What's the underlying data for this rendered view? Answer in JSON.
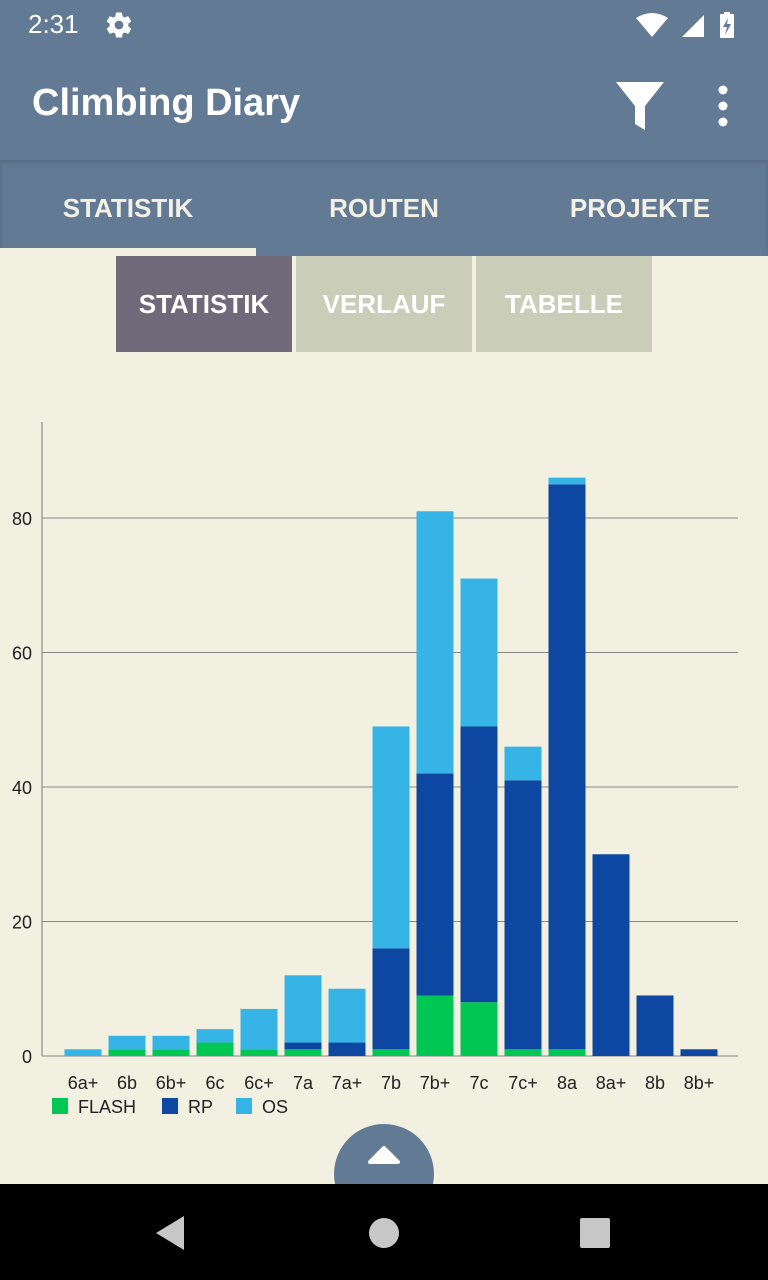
{
  "status_bar": {
    "time": "2:31",
    "icons": [
      "gear-icon",
      "wifi-icon",
      "signal-icon",
      "battery-charging-icon"
    ]
  },
  "app_bar": {
    "title": "Climbing Diary",
    "actions": [
      "filter-icon",
      "more-vert-icon"
    ]
  },
  "tabs": [
    {
      "label": "STATISTIK",
      "active": true
    },
    {
      "label": "ROUTEN",
      "active": false
    },
    {
      "label": "PROJEKTE",
      "active": false
    }
  ],
  "segments": [
    {
      "label": "STATISTIK",
      "active": true
    },
    {
      "label": "VERLAUF",
      "active": false
    },
    {
      "label": "TABELLE",
      "active": false
    }
  ],
  "colors": {
    "app_bar": "#627a94",
    "background": "#f1f0e1",
    "segment_active": "#6e6a7a",
    "segment_inactive": "#cacdb8",
    "flash": "#00c653",
    "rp": "#0e47a1",
    "os": "#36b4e5"
  },
  "chart_data": {
    "type": "bar",
    "stacked": true,
    "categories": [
      "6a+",
      "6b",
      "6b+",
      "6c",
      "6c+",
      "7a",
      "7a+",
      "7b",
      "7b+",
      "7c",
      "7c+",
      "8a",
      "8a+",
      "8b",
      "8b+"
    ],
    "series": [
      {
        "name": "FLASH",
        "color": "#00c653",
        "values": [
          0,
          1,
          1,
          2,
          1,
          1,
          0,
          1,
          9,
          8,
          1,
          1,
          0,
          0,
          0
        ]
      },
      {
        "name": "RP",
        "color": "#0e47a1",
        "values": [
          0,
          0,
          0,
          0,
          0,
          1,
          2,
          15,
          33,
          41,
          40,
          84,
          30,
          9,
          1
        ]
      },
      {
        "name": "OS",
        "color": "#36b4e5",
        "values": [
          1,
          2,
          2,
          2,
          6,
          10,
          8,
          33,
          39,
          22,
          5,
          1,
          0,
          0,
          0
        ]
      }
    ],
    "yticks": [
      0,
      20,
      40,
      60,
      80
    ],
    "ylim": [
      0,
      95
    ],
    "grid": true,
    "legend": "bottom-left"
  },
  "navigation_bar": {
    "buttons": [
      "back-icon",
      "home-icon",
      "recents-icon"
    ]
  }
}
